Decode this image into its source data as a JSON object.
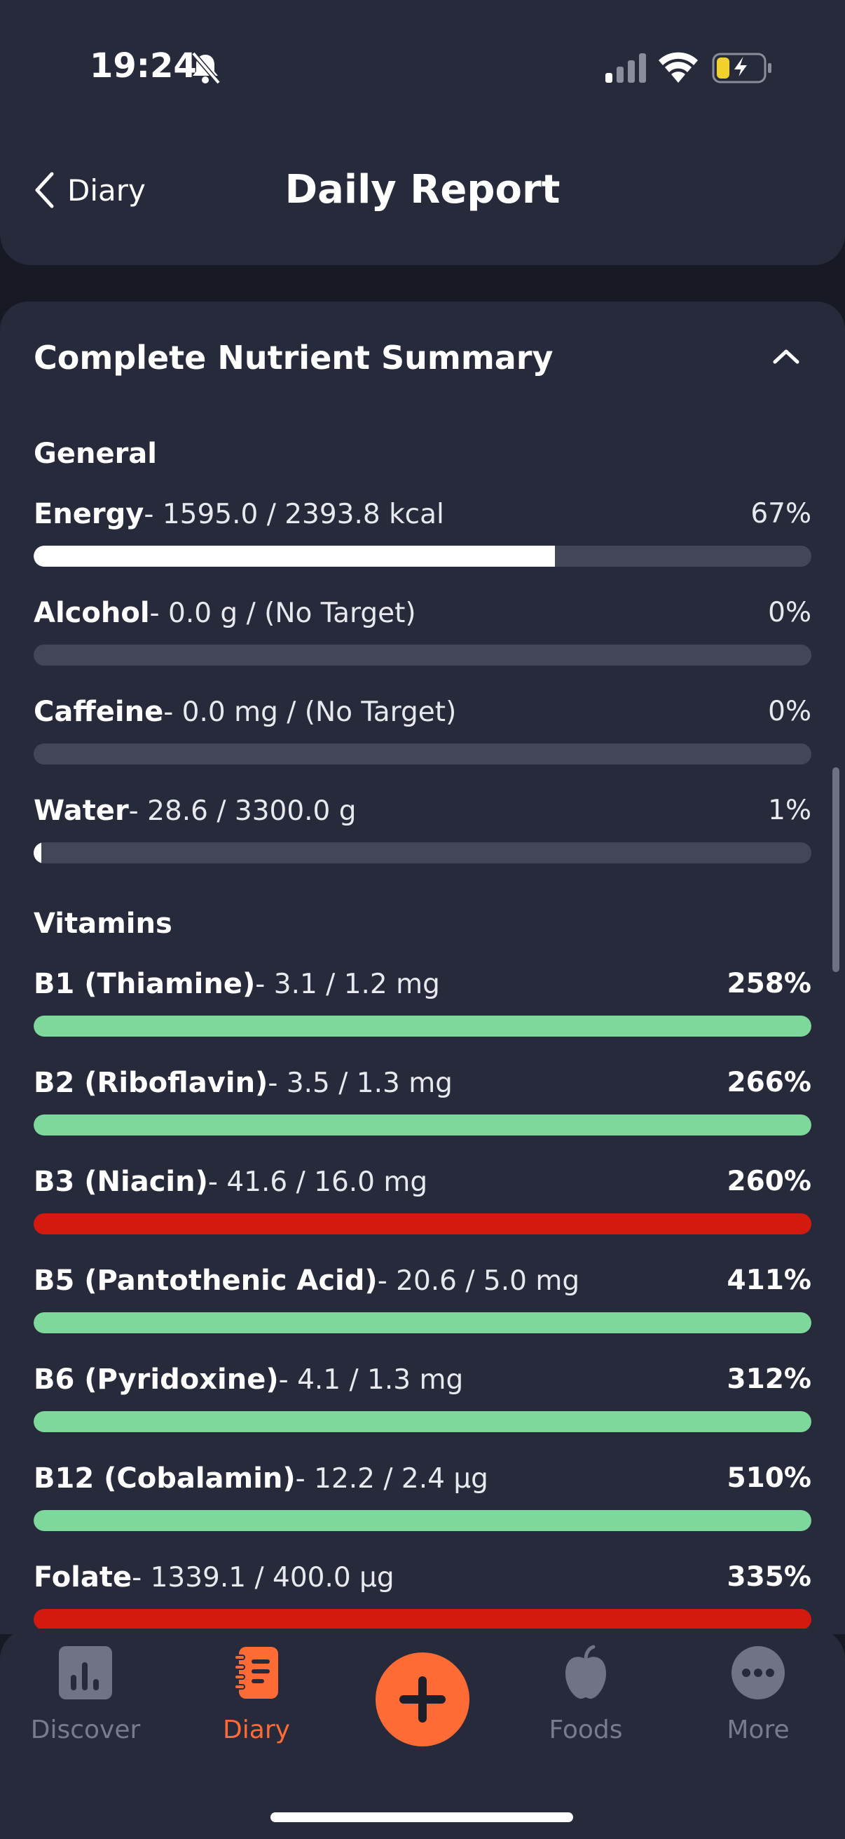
{
  "status": {
    "time": "19:24"
  },
  "header": {
    "back_label": "Diary",
    "title": "Daily Report"
  },
  "summary": {
    "title": "Complete Nutrient Summary",
    "sections": [
      {
        "label": "General",
        "rows": [
          {
            "name": "Energy",
            "detail": "- 1595.0 / 2393.8 kcal",
            "pct": "67%",
            "fill": 0.67,
            "color": "#ffffff"
          },
          {
            "name": "Alcohol",
            "detail": "- 0.0 g / (No Target)",
            "pct": "0%",
            "fill": 0,
            "color": "#ffffff"
          },
          {
            "name": "Caffeine",
            "detail": "- 0.0 mg / (No Target)",
            "pct": "0%",
            "fill": 0,
            "color": "#ffffff"
          },
          {
            "name": "Water",
            "detail": "- 28.6 / 3300.0 g",
            "pct": "1%",
            "fill": 0.01,
            "color": "#ffffff"
          }
        ]
      },
      {
        "label": "Vitamins",
        "rows": [
          {
            "name": "B1 (Thiamine)",
            "detail": "- 3.1 / 1.2 mg",
            "pct": "258%",
            "fill": 1,
            "color": "#7ed89b"
          },
          {
            "name": "B2 (Riboflavin)",
            "detail": "- 3.5 / 1.3 mg",
            "pct": "266%",
            "fill": 1,
            "color": "#7ed89b"
          },
          {
            "name": "B3 (Niacin)",
            "detail": "- 41.6 / 16.0 mg",
            "pct": "260%",
            "fill": 1,
            "color": "#d41a0e"
          },
          {
            "name": "B5 (Pantothenic Acid)",
            "detail": "- 20.6 / 5.0 mg",
            "pct": "411%",
            "fill": 1,
            "color": "#7ed89b"
          },
          {
            "name": "B6 (Pyridoxine)",
            "detail": "- 4.1 / 1.3 mg",
            "pct": "312%",
            "fill": 1,
            "color": "#7ed89b"
          },
          {
            "name": "B12 (Cobalamin)",
            "detail": "- 12.2 / 2.4 µg",
            "pct": "510%",
            "fill": 1,
            "color": "#7ed89b"
          },
          {
            "name": "Folate",
            "detail": "- 1339.1 / 400.0 µg",
            "pct": "335%",
            "fill": 1,
            "color": "#d41a0e"
          }
        ]
      }
    ]
  },
  "tabs": [
    {
      "label": "Discover",
      "icon": "chart-icon",
      "active": false
    },
    {
      "label": "Diary",
      "icon": "notebook-icon",
      "active": true
    },
    {
      "label": "Foods",
      "icon": "apple-icon",
      "active": false
    },
    {
      "label": "More",
      "icon": "more-dots-icon",
      "active": false
    }
  ],
  "colors": {
    "accent": "#ff6b35",
    "good": "#7ed89b",
    "over": "#d41a0e"
  }
}
